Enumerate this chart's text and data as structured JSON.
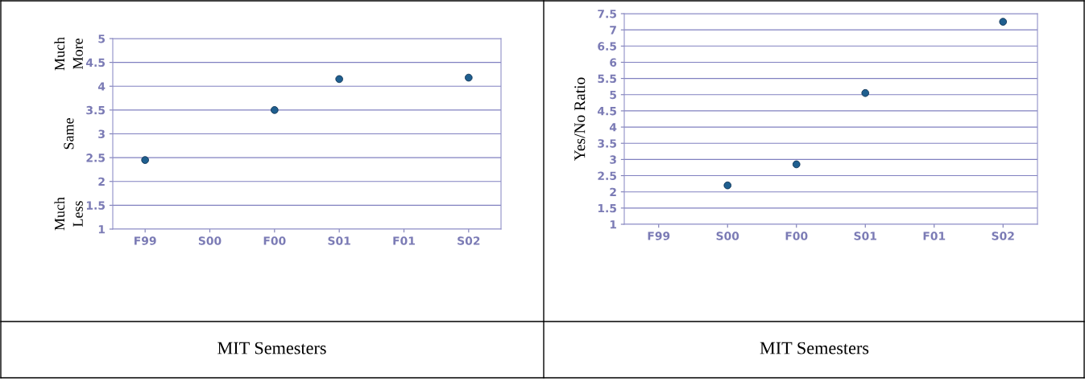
{
  "chart_data": [
    {
      "type": "scatter",
      "categories": [
        "F99",
        "S00",
        "F00",
        "S01",
        "F01",
        "S02"
      ],
      "series": [
        {
          "color": "#1f5f8f",
          "values": [
            2.45,
            null,
            3.5,
            4.15,
            null,
            4.18
          ]
        }
      ],
      "ylim": [
        1,
        5
      ],
      "yticks": [
        1,
        1.5,
        2,
        2.5,
        3,
        3.5,
        4,
        4.5,
        5
      ],
      "grid": "y",
      "marker": "circle",
      "xlabel": "MIT Semesters",
      "annotations": [
        "Much More",
        "Same",
        "Much Less"
      ]
    },
    {
      "type": "scatter",
      "categories": [
        "F99",
        "S00",
        "F00",
        "S01",
        "F01",
        "S02"
      ],
      "series": [
        {
          "color": "#1f5f8f",
          "values": [
            null,
            2.2,
            2.85,
            5.05,
            null,
            7.25
          ]
        }
      ],
      "ylim": [
        1,
        7.5
      ],
      "yticks": [
        1,
        1.5,
        2,
        2.5,
        3,
        3.5,
        4,
        4.5,
        5,
        5.5,
        6,
        6.5,
        7,
        7.5
      ],
      "grid": "y",
      "marker": "circle",
      "xlabel": "MIT Semesters",
      "ylabel": "Yes/No Ratio"
    }
  ]
}
